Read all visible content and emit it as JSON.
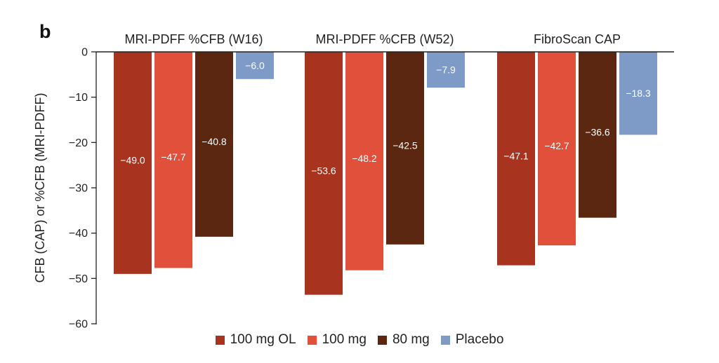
{
  "panel_label": "b",
  "chart_data": {
    "type": "bar",
    "groups": [
      "MRI-PDFF %CFB (W16)",
      "MRI-PDFF %CFB (W52)",
      "FibroScan CAP"
    ],
    "series": [
      {
        "name": "100 mg OL",
        "color": "#A8331F",
        "values": [
          -49.0,
          -53.6,
          -47.1
        ]
      },
      {
        "name": "100 mg",
        "color": "#E0503A",
        "values": [
          -47.7,
          -48.2,
          -42.7
        ]
      },
      {
        "name": "80 mg",
        "color": "#5B2710",
        "values": [
          -40.8,
          -42.5,
          -36.6
        ]
      },
      {
        "name": "Placebo",
        "color": "#7E9BC8",
        "values": [
          -6.0,
          -7.9,
          -18.3
        ]
      }
    ],
    "data_labels": [
      [
        "−49.0",
        "−47.7",
        "−40.8",
        "−6.0"
      ],
      [
        "−53.6",
        "−48.2",
        "−42.5",
        "−7.9"
      ],
      [
        "−47.1",
        "−42.7",
        "−36.6",
        "−18.3"
      ]
    ],
    "ylabel": "CFB (CAP) or %CFB (MRI-PDFF)",
    "ylim": [
      -60,
      0
    ],
    "yticks": [
      0,
      -10,
      -20,
      -30,
      -40,
      -50,
      -60
    ],
    "ytick_labels": [
      "0",
      "−10",
      "−20",
      "−30",
      "−40",
      "−50",
      "−60"
    ],
    "legend_position": "bottom",
    "grid": false
  }
}
